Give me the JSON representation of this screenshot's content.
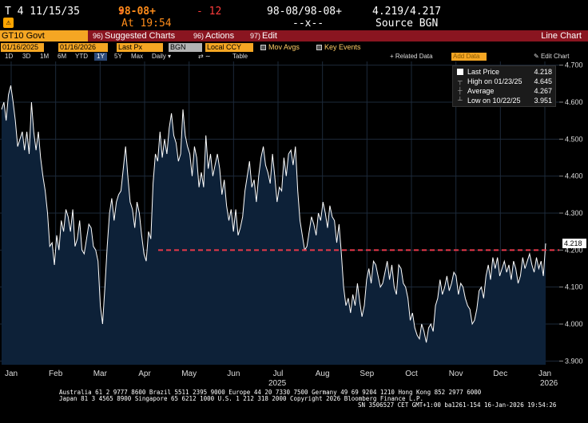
{
  "quote": {
    "security": "T 4 11/15/35",
    "alert_icon": "alert-icon",
    "arrow": "↓",
    "price": "98-08+",
    "at_time": "At 19:54",
    "change": "- 12",
    "bid_ask": "98-08/98-08+",
    "bid_ask_sizes": "--x--",
    "yields": "4.219/4.217",
    "source": "Source BGN"
  },
  "command_bar": {
    "ticker": "GT10 Govt",
    "menus": [
      {
        "num": "96)",
        "label": "Suggested Charts"
      },
      {
        "num": "96)",
        "label": "Actions"
      },
      {
        "num": "97)",
        "label": "Edit"
      }
    ],
    "chart_type": "Line Chart"
  },
  "controls": {
    "start_date": "01/16/2025",
    "end_date": "01/16/2026",
    "field": "Last Px",
    "pricing_source": "BGN",
    "currency": "Local CCY",
    "mov_avgs": "Mov Avgs",
    "key_events": "Key Events"
  },
  "ranges": {
    "items": [
      "1D",
      "3D",
      "1M",
      "6M",
      "YTD",
      "1Y",
      "5Y",
      "Max"
    ],
    "selected": "1Y",
    "frequency": "Daily",
    "table": "Table",
    "related_data": "+ Related Data",
    "add_data": "Add Data",
    "edit_chart": "Edit Chart"
  },
  "legend": {
    "last_price_label": "Last Price",
    "last_price_value": "4.218",
    "high_label": "High on 01/23/25",
    "high_value": "4.645",
    "avg_label": "Average",
    "avg_value": "4.267",
    "low_label": "Low on 10/22/25",
    "low_value": "3.951"
  },
  "chart_data": {
    "type": "area",
    "series": [
      {
        "name": "Last Price",
        "color": "#ffffff",
        "fill": "#0d2138",
        "values": [
          4.58,
          4.6,
          4.55,
          4.62,
          4.645,
          4.6,
          4.55,
          4.48,
          4.5,
          4.52,
          4.47,
          4.52,
          4.46,
          4.6,
          4.52,
          4.47,
          4.52,
          4.45,
          4.4,
          4.36,
          4.3,
          4.21,
          4.22,
          4.16,
          4.24,
          4.2,
          4.28,
          4.25,
          4.31,
          4.29,
          4.25,
          4.31,
          4.21,
          4.23,
          4.28,
          4.2,
          4.19,
          4.23,
          4.27,
          4.26,
          4.21,
          4.2,
          4.17,
          4.05,
          4.0,
          4.1,
          4.21,
          4.3,
          4.34,
          4.28,
          4.33,
          4.35,
          4.36,
          4.42,
          4.48,
          4.4,
          4.33,
          4.31,
          4.26,
          4.33,
          4.3,
          4.24,
          4.19,
          4.17,
          4.25,
          4.23,
          4.38,
          4.46,
          4.44,
          4.52,
          4.45,
          4.5,
          4.46,
          4.53,
          4.57,
          4.51,
          4.49,
          4.44,
          4.46,
          4.58,
          4.51,
          4.48,
          4.46,
          4.4,
          4.48,
          4.45,
          4.37,
          4.41,
          4.37,
          4.51,
          4.42,
          4.46,
          4.4,
          4.43,
          4.46,
          4.42,
          4.35,
          4.39,
          4.32,
          4.28,
          4.31,
          4.25,
          4.31,
          4.24,
          4.26,
          4.29,
          4.36,
          4.4,
          4.44,
          4.37,
          4.39,
          4.33,
          4.4,
          4.45,
          4.48,
          4.43,
          4.41,
          4.38,
          4.46,
          4.4,
          4.33,
          4.37,
          4.36,
          4.45,
          4.4,
          4.46,
          4.47,
          4.43,
          4.48,
          4.36,
          4.28,
          4.24,
          4.2,
          4.21,
          4.25,
          4.29,
          4.27,
          4.24,
          4.3,
          4.28,
          4.33,
          4.3,
          4.26,
          4.32,
          4.29,
          4.28,
          4.22,
          4.27,
          4.19,
          4.1,
          4.05,
          4.07,
          4.03,
          4.08,
          4.05,
          4.11,
          4.06,
          4.02,
          4.05,
          4.12,
          4.15,
          4.11,
          4.17,
          4.16,
          4.13,
          4.1,
          4.11,
          4.14,
          4.17,
          4.12,
          4.16,
          4.1,
          4.08,
          4.16,
          4.15,
          4.11,
          4.1,
          4.07,
          4.01,
          4.03,
          3.99,
          3.97,
          3.96,
          4.0,
          3.98,
          3.95,
          3.99,
          4.0,
          3.98,
          4.05,
          4.07,
          4.12,
          4.08,
          4.1,
          4.13,
          4.09,
          4.11,
          4.14,
          4.13,
          4.08,
          4.11,
          4.1,
          4.07,
          4.05,
          4.04,
          4.0,
          4.01,
          4.04,
          4.09,
          4.1,
          4.07,
          4.13,
          4.16,
          4.12,
          4.18,
          4.15,
          4.18,
          4.13,
          4.15,
          4.17,
          4.14,
          4.16,
          4.12,
          4.17,
          4.15,
          4.11,
          4.13,
          4.18,
          4.15,
          4.17,
          4.19,
          4.16,
          4.14,
          4.18,
          4.15,
          4.17,
          4.13,
          4.218
        ]
      }
    ],
    "reference_line": {
      "value": 4.2,
      "color": "#e8394a",
      "label": "4.218"
    },
    "ylim": [
      3.89,
      4.71
    ],
    "y_ticks": [
      "4.700",
      "4.600",
      "4.500",
      "4.400",
      "4.300",
      "4.200",
      "4.100",
      "4.000",
      "3.900"
    ],
    "x_labels": [
      "Jan",
      "Feb",
      "Mar",
      "Apr",
      "May",
      "Jun",
      "Jul",
      "Aug",
      "Sep",
      "Oct",
      "Nov",
      "Dec",
      "Jan"
    ],
    "year_labels": [
      "2025",
      "2026"
    ],
    "grid": true,
    "legend_position": "top-right"
  },
  "footer": {
    "line1": "Australia 61 2 9777 8600 Brazil 5511 2395 9000 Europe 44 20 7330 7500 Germany 49 69 9204 1210 Hong Kong 852 2977 6000",
    "line2": "Japan 81 3 4565 8900      Singapore 65 6212 1000      U.S. 1 212 318 2000            Copyright 2026 Bloomberg Finance L.P.",
    "line3": "SN 3506527 CET  GMT+1:00 ba1261-154 16-Jan-2026 19:54:26"
  }
}
